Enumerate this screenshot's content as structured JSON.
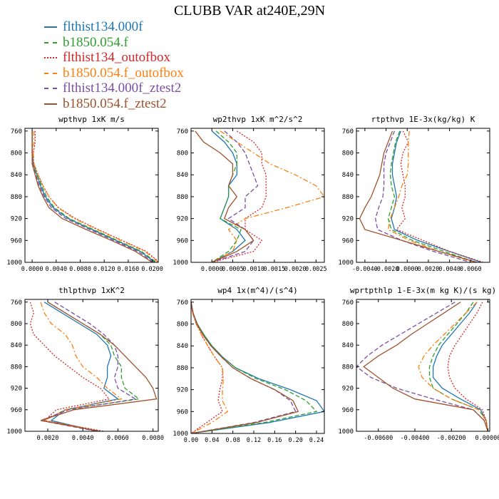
{
  "title": "CLUBB VAR at240E,29N",
  "legend": [
    {
      "name": "flthist134.000f",
      "color": "#1f77b4",
      "dash": "solid"
    },
    {
      "name": "b1850.054.f",
      "color": "#2ca02c",
      "dash": "dashed"
    },
    {
      "name": "flthist134_outofbox",
      "color": "#d62728",
      "dash": "dotted"
    },
    {
      "name": "b1850.054.f_outofbox",
      "color": "#ff7f0e",
      "dash": "dashdot"
    },
    {
      "name": "flthist134.000f_ztest2",
      "color": "#7b4ea3",
      "dash": "dashed"
    },
    {
      "name": "b1850.054.f_ztest2",
      "color": "#a0522d",
      "dash": "solid"
    }
  ],
  "chart_data": [
    {
      "type": "line",
      "title": "wpthvp  1xK m/s",
      "xlim": [
        -0.0012,
        0.021
      ],
      "ylim": [
        1000,
        755
      ],
      "xticks": [
        0.0,
        0.004,
        0.008,
        0.012,
        0.016,
        0.02
      ],
      "xtick_labels": [
        "0.0000",
        "0.0040",
        "0.0080",
        "0.0120",
        "0.0160",
        "0.0200"
      ],
      "yticks": [
        760,
        800,
        840,
        880,
        920,
        960,
        1000
      ],
      "y": [
        760,
        780,
        800,
        820,
        840,
        860,
        880,
        900,
        920,
        940,
        960,
        980,
        1000
      ],
      "series": [
        {
          "values": [
            0.0,
            0.0,
            0.0,
            0.0002,
            0.0008,
            0.0014,
            0.0022,
            0.0035,
            0.006,
            0.01,
            0.014,
            0.018,
            0.0205
          ]
        },
        {
          "values": [
            0.0,
            0.0,
            0.0,
            0.0002,
            0.0008,
            0.0016,
            0.0024,
            0.0037,
            0.0062,
            0.0102,
            0.0142,
            0.0182,
            0.0207
          ]
        },
        {
          "values": [
            0.0005,
            0.0005,
            0.0002,
            0.0003,
            0.001,
            0.0018,
            0.0028,
            0.0044,
            0.0072,
            0.011,
            0.015,
            0.019,
            0.0212
          ]
        },
        {
          "values": [
            0.0003,
            0.0003,
            0.0002,
            0.0003,
            0.001,
            0.0018,
            0.0028,
            0.0043,
            0.007,
            0.0108,
            0.0148,
            0.0188,
            0.021
          ]
        },
        {
          "values": [
            0.0,
            0.0,
            0.0,
            0.0001,
            0.0006,
            0.0012,
            0.002,
            0.0032,
            0.0056,
            0.0096,
            0.0136,
            0.0176,
            0.0202
          ]
        },
        {
          "values": [
            0.0,
            0.0,
            0.0,
            0.0,
            0.0005,
            0.001,
            0.0018,
            0.0028,
            0.005,
            0.009,
            0.0132,
            0.0172,
            0.02
          ]
        }
      ]
    },
    {
      "type": "line",
      "title": "wp2thvp  1xK m^2/s^2",
      "xlim": [
        -0.0005,
        0.0027
      ],
      "ylim": [
        1000,
        755
      ],
      "xticks": [
        0.0,
        0.0005,
        0.001,
        0.0015,
        0.002,
        0.0025
      ],
      "xtick_labels": [
        "0.0000",
        "0.0005",
        "0.0010",
        "0.0015",
        "0.0020",
        "0.0025"
      ],
      "yticks": [
        760,
        800,
        840,
        880,
        920,
        960,
        1000
      ],
      "y": [
        760,
        780,
        800,
        820,
        840,
        860,
        880,
        900,
        920,
        940,
        960,
        980,
        1000
      ],
      "series": [
        {
          "values": [
            0.0,
            0.0003,
            0.0005,
            0.0006,
            0.0006,
            0.0004,
            0.0004,
            0.0003,
            0.0002,
            0.0006,
            0.0008,
            0.0005,
            0.0
          ]
        },
        {
          "values": [
            0.0001,
            0.0004,
            0.0006,
            0.0006,
            0.0005,
            0.0004,
            0.0004,
            0.0003,
            0.0002,
            0.0007,
            0.0006,
            0.0004,
            0.0
          ]
        },
        {
          "values": [
            0.0006,
            0.001,
            0.0012,
            0.0012,
            0.0013,
            0.0013,
            0.0013,
            0.0012,
            0.0008,
            0.0008,
            0.0012,
            0.001,
            0.0
          ]
        },
        {
          "values": [
            0.0002,
            0.0006,
            0.001,
            0.0014,
            0.002,
            0.0025,
            0.0027,
            0.0018,
            0.0008,
            0.0004,
            0.0006,
            0.0005,
            0.0
          ]
        },
        {
          "values": [
            0.0003,
            0.0006,
            0.0008,
            0.0009,
            0.001,
            0.0011,
            0.0008,
            0.0008,
            0.0004,
            0.0008,
            0.001,
            0.0008,
            0.0
          ]
        },
        {
          "values": [
            -0.0004,
            -0.0002,
            0.0002,
            0.0005,
            0.0005,
            0.0004,
            0.0006,
            0.0004,
            0.0003,
            0.0008,
            0.001,
            0.0006,
            0.0
          ]
        }
      ]
    },
    {
      "type": "line",
      "title": "rtpthvp  1E-3x(kg/kg) K",
      "xlim": [
        -0.0048,
        0.0078
      ],
      "ylim": [
        1000,
        755
      ],
      "xticks": [
        -0.004,
        -0.002,
        0.0,
        0.002,
        0.004,
        0.006
      ],
      "xtick_labels": [
        "-0.0040",
        "-0.0020",
        "0.0000",
        "0.0020",
        "0.0040",
        "0.0060"
      ],
      "yticks": [
        760,
        800,
        840,
        880,
        920,
        960,
        1000
      ],
      "y": [
        760,
        780,
        800,
        820,
        840,
        860,
        880,
        900,
        920,
        940,
        960,
        980,
        1000
      ],
      "series": [
        {
          "values": [
            -0.0006,
            -0.001,
            -0.0012,
            -0.0014,
            -0.0014,
            -0.0012,
            -0.001,
            -0.0012,
            -0.0015,
            -0.0012,
            0.001,
            0.004,
            0.007
          ]
        },
        {
          "values": [
            -0.0007,
            -0.0011,
            -0.0013,
            -0.0015,
            -0.0016,
            -0.0015,
            -0.0012,
            -0.0015,
            -0.0018,
            -0.0015,
            0.0005,
            0.0035,
            0.0065
          ]
        },
        {
          "values": [
            -0.0004,
            0.0001,
            -0.0004,
            -0.0006,
            -0.0004,
            -0.0002,
            -0.0002,
            -0.0005,
            -0.0002,
            -0.001,
            0.0015,
            0.004,
            0.0072
          ]
        },
        {
          "values": [
            0.0002,
            0.0001,
            0.0001,
            0.0001,
            0.0,
            -0.0005,
            -0.0008,
            -0.0012,
            -0.0016,
            -0.0018,
            0.0002,
            0.003,
            0.0064
          ]
        },
        {
          "values": [
            -0.0012,
            -0.0016,
            -0.002,
            -0.0022,
            -0.0022,
            -0.0022,
            -0.0023,
            -0.0027,
            -0.003,
            -0.0028,
            -0.0005,
            0.0025,
            0.006
          ]
        },
        {
          "values": [
            -0.0014,
            -0.0018,
            -0.0022,
            -0.0024,
            -0.0026,
            -0.003,
            -0.0034,
            -0.004,
            -0.0045,
            -0.004,
            -0.0005,
            0.003,
            0.0066
          ]
        }
      ]
    },
    {
      "type": "line",
      "title": "thlpthvp  1xK^2",
      "xlim": [
        0.0007,
        0.0083
      ],
      "ylim": [
        1000,
        755
      ],
      "xticks": [
        0.002,
        0.004,
        0.006,
        0.008
      ],
      "xtick_labels": [
        "0.0020",
        "0.0040",
        "0.0060",
        "0.0080"
      ],
      "yticks": [
        760,
        800,
        840,
        880,
        920,
        960,
        1000
      ],
      "y": [
        760,
        780,
        800,
        820,
        840,
        860,
        880,
        900,
        920,
        940,
        960,
        980,
        1000
      ],
      "series": [
        {
          "values": [
            0.0018,
            0.0028,
            0.0038,
            0.0048,
            0.0054,
            0.0056,
            0.0054,
            0.0054,
            0.0052,
            0.006,
            0.003,
            0.0022,
            0.0048
          ]
        },
        {
          "values": [
            0.002,
            0.003,
            0.004,
            0.005,
            0.0056,
            0.0058,
            0.0062,
            0.0062,
            0.0064,
            0.0072,
            0.003,
            0.0018,
            0.005
          ]
        },
        {
          "values": [
            0.001,
            0.0012,
            0.001,
            0.0012,
            0.0018,
            0.0024,
            0.0032,
            0.004,
            0.005,
            0.0055,
            0.0025,
            0.0018,
            0.0052
          ]
        },
        {
          "values": [
            0.0016,
            0.0018,
            0.0022,
            0.003,
            0.0034,
            0.0036,
            0.004,
            0.0048,
            0.0054,
            0.0062,
            0.003,
            0.0018,
            0.005
          ]
        },
        {
          "values": [
            0.0024,
            0.0034,
            0.0044,
            0.0052,
            0.0058,
            0.006,
            0.006,
            0.0058,
            0.006,
            0.007,
            0.0032,
            0.0016,
            0.0048
          ]
        },
        {
          "values": [
            0.002,
            0.003,
            0.004,
            0.005,
            0.0058,
            0.0064,
            0.007,
            0.0076,
            0.008,
            0.0082,
            0.0035,
            0.0016,
            0.005
          ]
        }
      ]
    },
    {
      "type": "line",
      "title": "wp4  1x(m^4)/(s^4)",
      "xlim": [
        0.0,
        0.255
      ],
      "ylim": [
        1000,
        755
      ],
      "xticks": [
        0.0,
        0.04,
        0.08,
        0.12,
        0.16,
        0.2,
        0.24
      ],
      "xtick_labels": [
        "0.00",
        "0.04",
        "0.08",
        "0.12",
        "0.16",
        "0.20",
        "0.24"
      ],
      "yticks": [
        760,
        800,
        840,
        880,
        920,
        960,
        1000
      ],
      "y": [
        760,
        780,
        800,
        820,
        840,
        860,
        880,
        900,
        920,
        940,
        960,
        980,
        1000
      ],
      "series": [
        {
          "values": [
            0.0,
            0.004,
            0.012,
            0.025,
            0.04,
            0.06,
            0.085,
            0.13,
            0.19,
            0.24,
            0.255,
            0.15,
            0.0
          ]
        },
        {
          "values": [
            0.0,
            0.004,
            0.012,
            0.025,
            0.04,
            0.06,
            0.085,
            0.125,
            0.18,
            0.22,
            0.24,
            0.14,
            0.0
          ]
        },
        {
          "values": [
            0.0,
            0.003,
            0.01,
            0.02,
            0.032,
            0.045,
            0.06,
            0.06,
            0.055,
            0.052,
            0.06,
            0.03,
            0.0
          ]
        },
        {
          "values": [
            0.0,
            0.003,
            0.01,
            0.02,
            0.032,
            0.045,
            0.06,
            0.062,
            0.06,
            0.06,
            0.07,
            0.04,
            0.0
          ]
        },
        {
          "values": [
            0.0,
            0.004,
            0.011,
            0.023,
            0.038,
            0.058,
            0.08,
            0.115,
            0.16,
            0.19,
            0.2,
            0.12,
            0.0
          ]
        },
        {
          "values": [
            0.0,
            0.004,
            0.011,
            0.023,
            0.038,
            0.058,
            0.08,
            0.115,
            0.16,
            0.195,
            0.205,
            0.125,
            0.0
          ]
        }
      ]
    },
    {
      "type": "line",
      "title": "wprtpthlp  1-E-3x(m kg K)/(s kg)",
      "xlim": [
        -0.0072,
        0.0001
      ],
      "ylim": [
        1000,
        755
      ],
      "xticks": [
        -0.006,
        -0.004,
        -0.002,
        0.0
      ],
      "xtick_labels": [
        "-0.00600",
        "-0.00400",
        "-0.00200",
        "0.00000"
      ],
      "yticks": [
        760,
        800,
        840,
        880,
        920,
        960,
        1000
      ],
      "y": [
        760,
        780,
        800,
        820,
        840,
        860,
        880,
        900,
        920,
        940,
        960,
        980,
        1000
      ],
      "series": [
        {
          "values": [
            -0.0006,
            -0.001,
            -0.0015,
            -0.002,
            -0.0025,
            -0.0028,
            -0.003,
            -0.003,
            -0.0025,
            -0.0015,
            -0.0004,
            -0.0001,
            0.0
          ]
        },
        {
          "values": [
            -0.0008,
            -0.0012,
            -0.0017,
            -0.0022,
            -0.0027,
            -0.003,
            -0.0032,
            -0.0032,
            -0.003,
            -0.002,
            -0.0005,
            -0.0001,
            0.0
          ]
        },
        {
          "values": [
            -0.0003,
            -0.0006,
            -0.001,
            -0.0014,
            -0.0018,
            -0.0021,
            -0.0022,
            -0.0021,
            -0.0018,
            -0.0012,
            -0.0003,
            -0.0001,
            0.0
          ]
        },
        {
          "values": [
            -0.0006,
            -0.0012,
            -0.0018,
            -0.0024,
            -0.003,
            -0.0035,
            -0.0038,
            -0.0036,
            -0.003,
            -0.002,
            -0.0005,
            -0.0001,
            0.0
          ]
        },
        {
          "values": [
            -0.0018,
            -0.0028,
            -0.0038,
            -0.0048,
            -0.0058,
            -0.0066,
            -0.0072,
            -0.0064,
            -0.005,
            -0.003,
            -0.0008,
            -0.0002,
            0.0
          ]
        },
        {
          "values": [
            -0.0015,
            -0.0024,
            -0.0033,
            -0.0042,
            -0.005,
            -0.006,
            -0.0068,
            -0.006,
            -0.0052,
            -0.004,
            -0.0008,
            -0.0002,
            0.0
          ]
        }
      ]
    }
  ]
}
